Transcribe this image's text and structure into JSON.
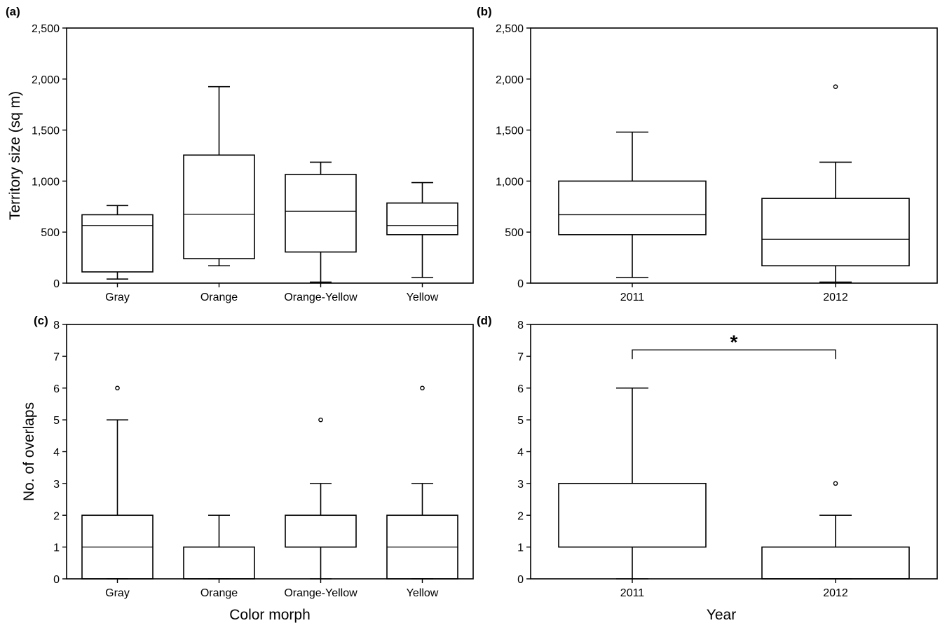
{
  "figure": {
    "x_title_left": "Color morph",
    "x_title_right": "Year"
  },
  "chart_data": [
    {
      "id": "a",
      "panel_label": "(a)",
      "type": "box",
      "ylabel": "Territory size (sq m)",
      "ylim": [
        0,
        2500
      ],
      "yticks": [
        0,
        500,
        1000,
        1500,
        2000,
        2500
      ],
      "ytick_labels": [
        "0",
        "500",
        "1,000",
        "1,500",
        "2,000",
        "2,500"
      ],
      "categories": [
        "Gray",
        "Orange",
        "Orange-Yellow",
        "Yellow"
      ],
      "boxes": [
        {
          "min": 40,
          "q1": 110,
          "median": 565,
          "q3": 670,
          "max": 760,
          "outliers": []
        },
        {
          "min": 170,
          "q1": 240,
          "median": 675,
          "q3": 1255,
          "max": 1925,
          "outliers": []
        },
        {
          "min": 10,
          "q1": 305,
          "median": 705,
          "q3": 1065,
          "max": 1185,
          "outliers": []
        },
        {
          "min": 55,
          "q1": 475,
          "median": 565,
          "q3": 785,
          "max": 985,
          "outliers": []
        }
      ]
    },
    {
      "id": "b",
      "panel_label": "(b)",
      "type": "box",
      "ylabel": "",
      "ylim": [
        0,
        2500
      ],
      "yticks": [
        0,
        500,
        1000,
        1500,
        2000,
        2500
      ],
      "ytick_labels": [
        "0",
        "500",
        "1,000",
        "1,500",
        "2,000",
        "2,500"
      ],
      "categories": [
        "2011",
        "2012"
      ],
      "boxes": [
        {
          "min": 55,
          "q1": 475,
          "median": 670,
          "q3": 1000,
          "max": 1480,
          "outliers": []
        },
        {
          "min": 10,
          "q1": 170,
          "median": 430,
          "q3": 830,
          "max": 1185,
          "outliers": [
            1925
          ]
        }
      ]
    },
    {
      "id": "c",
      "panel_label": "(c)",
      "type": "box",
      "ylabel": "No. of overlaps",
      "ylim": [
        0,
        8
      ],
      "yticks": [
        0,
        1,
        2,
        3,
        4,
        5,
        6,
        7,
        8
      ],
      "ytick_labels": [
        "0",
        "1",
        "2",
        "3",
        "4",
        "5",
        "6",
        "7",
        "8"
      ],
      "categories": [
        "Gray",
        "Orange",
        "Orange-Yellow",
        "Yellow"
      ],
      "boxes": [
        {
          "min": 0,
          "q1": 0,
          "median": 1,
          "q3": 2,
          "max": 5,
          "outliers": [
            6
          ]
        },
        {
          "min": 0,
          "q1": 0,
          "median": 0,
          "q3": 1,
          "max": 2,
          "outliers": []
        },
        {
          "min": 0,
          "q1": 1,
          "median": 1,
          "q3": 2,
          "max": 3,
          "outliers": [
            5
          ]
        },
        {
          "min": 0,
          "q1": 0,
          "median": 1,
          "q3": 2,
          "max": 3,
          "outliers": [
            6
          ]
        }
      ]
    },
    {
      "id": "d",
      "panel_label": "(d)",
      "type": "box",
      "ylabel": "",
      "ylim": [
        0,
        8
      ],
      "yticks": [
        0,
        1,
        2,
        3,
        4,
        5,
        6,
        7,
        8
      ],
      "ytick_labels": [
        "0",
        "1",
        "2",
        "3",
        "4",
        "5",
        "6",
        "7",
        "8"
      ],
      "categories": [
        "2011",
        "2012"
      ],
      "boxes": [
        {
          "min": 0,
          "q1": 1,
          "median": 3,
          "q3": 3,
          "max": 6,
          "outliers": []
        },
        {
          "min": 0,
          "q1": 0,
          "median": 0,
          "q3": 1,
          "max": 2,
          "outliers": [
            3
          ]
        }
      ],
      "significance": {
        "from": 0,
        "to": 1,
        "y": 7.2,
        "label": "*"
      }
    }
  ]
}
